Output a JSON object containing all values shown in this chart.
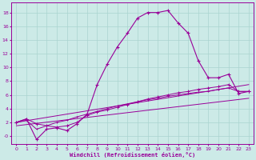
{
  "bg_color": "#cceae7",
  "line_color": "#990099",
  "grid_color": "#aad4d0",
  "xlabel": "Windchill (Refroidissement éolien,°C)",
  "xlim": [
    -0.5,
    23.5
  ],
  "ylim": [
    -1.2,
    19.5
  ],
  "xticks": [
    0,
    1,
    2,
    3,
    4,
    5,
    6,
    7,
    8,
    9,
    10,
    11,
    12,
    13,
    14,
    15,
    16,
    17,
    18,
    19,
    20,
    21,
    22,
    23
  ],
  "yticks": [
    0,
    2,
    4,
    6,
    8,
    10,
    12,
    14,
    16,
    18
  ],
  "ytick_labels": [
    "-0",
    "2",
    "4",
    "6",
    "8",
    "10",
    "12",
    "14",
    "16",
    "18"
  ],
  "curve_main_x": [
    0,
    1,
    2,
    3,
    4,
    5,
    6,
    7,
    8,
    9,
    10,
    11,
    12,
    13,
    14,
    15,
    16,
    17,
    18,
    19,
    20,
    21,
    22,
    23
  ],
  "curve_main_y": [
    2.0,
    2.5,
    -0.5,
    1.0,
    1.2,
    0.8,
    1.8,
    3.2,
    7.5,
    10.5,
    13.0,
    15.0,
    17.2,
    18.0,
    18.0,
    18.3,
    16.5,
    15.0,
    11.0,
    8.5,
    8.5,
    9.0,
    6.2,
    6.5
  ],
  "curve_low_x": [
    0,
    1,
    2,
    3,
    4,
    5,
    6,
    7,
    8,
    9,
    10,
    11,
    12,
    13,
    14,
    15,
    16,
    17,
    18,
    19,
    20,
    21,
    22,
    23
  ],
  "curve_low_y": [
    2.0,
    2.5,
    1.8,
    1.5,
    1.3,
    1.5,
    2.0,
    3.0,
    3.5,
    3.8,
    4.2,
    4.6,
    5.0,
    5.4,
    5.7,
    6.0,
    6.3,
    6.5,
    6.8,
    7.0,
    7.2,
    7.5,
    6.5,
    6.5
  ],
  "curve_line1_x": [
    0,
    23
  ],
  "curve_line1_y": [
    2.0,
    7.5
  ],
  "curve_line2_x": [
    0,
    23
  ],
  "curve_line2_y": [
    1.5,
    5.5
  ],
  "curve_diag_x": [
    0,
    1,
    2,
    3,
    4,
    5,
    6,
    7,
    8,
    9,
    10,
    11,
    12,
    13,
    14,
    15,
    16,
    17,
    18,
    19,
    20,
    21,
    22,
    23
  ],
  "curve_diag_y": [
    2.0,
    2.3,
    1.0,
    1.5,
    2.0,
    2.3,
    2.8,
    3.2,
    3.6,
    4.0,
    4.4,
    4.7,
    5.0,
    5.3,
    5.5,
    5.8,
    6.0,
    6.2,
    6.4,
    6.5,
    6.8,
    7.0,
    6.5,
    6.5
  ]
}
